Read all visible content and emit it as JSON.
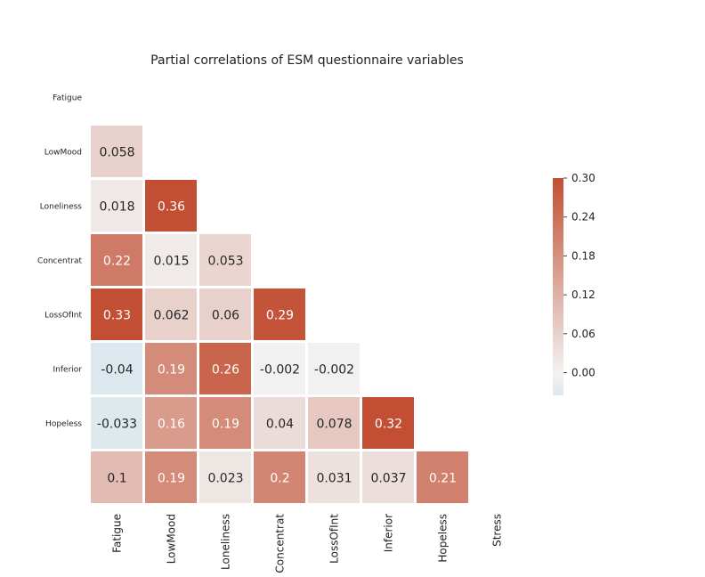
{
  "chart_data": {
    "type": "heatmap",
    "title": "Partial correlations of ESM questionnaire variables",
    "variables": [
      "Fatigue",
      "LowMood",
      "Loneliness",
      "Concentrat",
      "LossOfInt",
      "Inferior",
      "Hopeless",
      "Stress"
    ],
    "row_labels": [
      "Fatigue",
      "LowMood",
      "Loneliness",
      "Concentrat",
      "LossOfInt",
      "Inferior",
      "Hopeless",
      ""
    ],
    "col_labels": [
      "Fatigue",
      "LowMood",
      "Loneliness",
      "Concentrat",
      "LossOfInt",
      "Inferior",
      "Hopeless",
      "Stress"
    ],
    "mask": "upper triangle including diagonal",
    "cells": [
      {
        "row": 1,
        "col": 0,
        "value": 0.058,
        "label": "0.058"
      },
      {
        "row": 2,
        "col": 0,
        "value": 0.018,
        "label": "0.018"
      },
      {
        "row": 2,
        "col": 1,
        "value": 0.36,
        "label": "0.36"
      },
      {
        "row": 3,
        "col": 0,
        "value": 0.22,
        "label": "0.22"
      },
      {
        "row": 3,
        "col": 1,
        "value": 0.015,
        "label": "0.015"
      },
      {
        "row": 3,
        "col": 2,
        "value": 0.053,
        "label": "0.053"
      },
      {
        "row": 4,
        "col": 0,
        "value": 0.33,
        "label": "0.33"
      },
      {
        "row": 4,
        "col": 1,
        "value": 0.062,
        "label": "0.062"
      },
      {
        "row": 4,
        "col": 2,
        "value": 0.06,
        "label": "0.06"
      },
      {
        "row": 4,
        "col": 3,
        "value": 0.29,
        "label": "0.29"
      },
      {
        "row": 5,
        "col": 0,
        "value": -0.04,
        "label": "-0.04"
      },
      {
        "row": 5,
        "col": 1,
        "value": 0.19,
        "label": "0.19"
      },
      {
        "row": 5,
        "col": 2,
        "value": 0.26,
        "label": "0.26"
      },
      {
        "row": 5,
        "col": 3,
        "value": -0.002,
        "label": "-0.002"
      },
      {
        "row": 5,
        "col": 4,
        "value": -0.002,
        "label": "-0.002"
      },
      {
        "row": 6,
        "col": 0,
        "value": -0.033,
        "label": "-0.033"
      },
      {
        "row": 6,
        "col": 1,
        "value": 0.16,
        "label": "0.16"
      },
      {
        "row": 6,
        "col": 2,
        "value": 0.19,
        "label": "0.19"
      },
      {
        "row": 6,
        "col": 3,
        "value": 0.04,
        "label": "0.04"
      },
      {
        "row": 6,
        "col": 4,
        "value": 0.078,
        "label": "0.078"
      },
      {
        "row": 6,
        "col": 5,
        "value": 0.32,
        "label": "0.32"
      },
      {
        "row": 7,
        "col": 0,
        "value": 0.1,
        "label": "0.1"
      },
      {
        "row": 7,
        "col": 1,
        "value": 0.19,
        "label": "0.19"
      },
      {
        "row": 7,
        "col": 2,
        "value": 0.023,
        "label": "0.023"
      },
      {
        "row": 7,
        "col": 3,
        "value": 0.2,
        "label": "0.2"
      },
      {
        "row": 7,
        "col": 4,
        "value": 0.031,
        "label": "0.031"
      },
      {
        "row": 7,
        "col": 5,
        "value": 0.037,
        "label": "0.037"
      },
      {
        "row": 7,
        "col": 6,
        "value": 0.21,
        "label": "0.21"
      }
    ],
    "colorbar": {
      "range": [
        -0.035,
        0.3
      ],
      "ticks": [
        0.3,
        0.24,
        0.18,
        0.12,
        0.06,
        0.0
      ],
      "tick_labels": [
        "0.30",
        "0.24",
        "0.18",
        "0.12",
        "0.06",
        "0.00"
      ]
    },
    "colors": {
      "negative": "#dde8ee",
      "zero": "#f2f2f2",
      "positive": "#c24f33",
      "text_dark": "#262626",
      "text_light": "#ffffff"
    },
    "grid": false,
    "legend": "colorbar right"
  }
}
